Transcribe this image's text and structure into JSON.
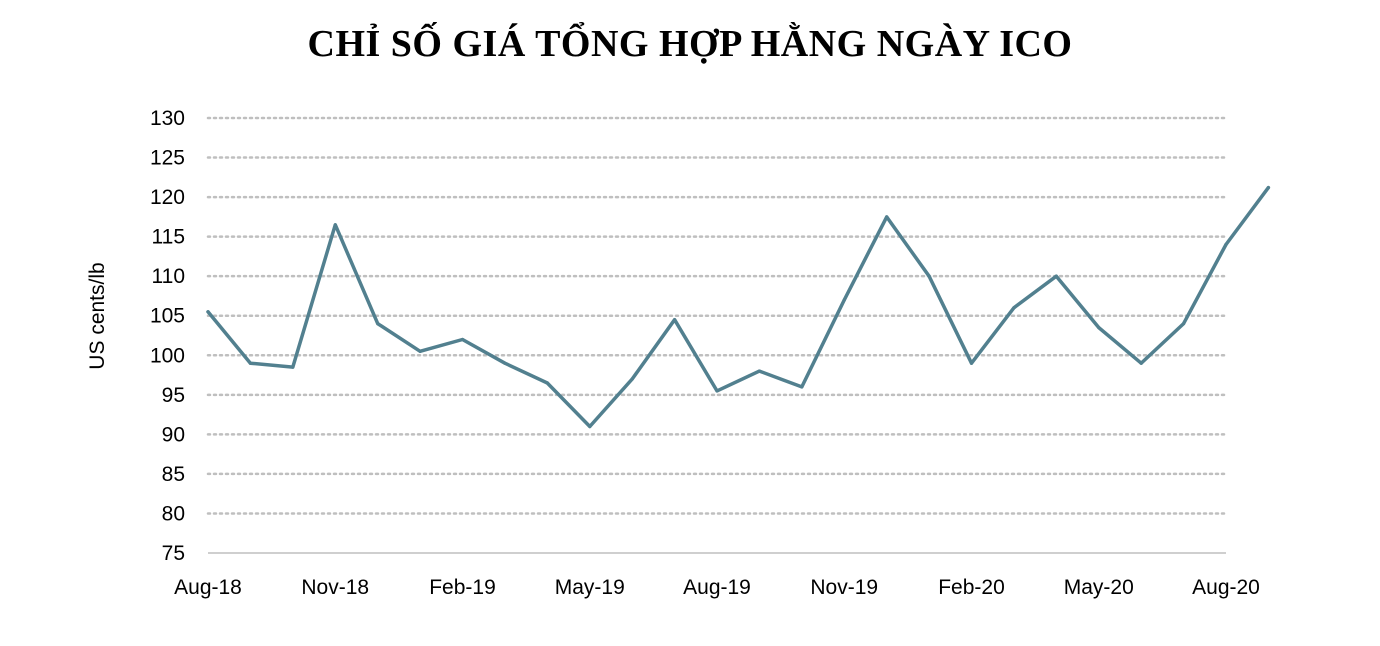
{
  "title": "CHỈ SỐ GIÁ TỔNG HỢP HẰNG NGÀY ICO",
  "colors": {
    "line": "#52808F",
    "grid": "#BFBFBF",
    "axis": "#BFBFBF",
    "text": "#000000"
  },
  "chart_data": {
    "type": "line",
    "title": "CHỈ SỐ GIÁ TỔNG HỢP HẰNG NGÀY ICO",
    "xlabel": "",
    "ylabel": "US cents/lb",
    "ylim": [
      75,
      130
    ],
    "yticks": [
      "130",
      "125",
      "120",
      "115",
      "110",
      "105",
      "100",
      "95",
      "90",
      "85",
      "80",
      "75"
    ],
    "xticks": [
      "Aug-18",
      "Nov-18",
      "Feb-19",
      "May-19",
      "Aug-19",
      "Nov-19",
      "Feb-20",
      "May-20",
      "Aug-20"
    ],
    "grid": true,
    "legend": "none",
    "series": [
      {
        "x": [
          "Aug-18",
          "Sep-18",
          "Oct-18",
          "Nov-18",
          "Dec-18",
          "Jan-19",
          "Feb-19",
          "Mar-19",
          "Apr-19",
          "May-19",
          "Jun-19",
          "Jul-19",
          "Aug-19",
          "Sep-19",
          "Oct-19",
          "Nov-19",
          "Dec-19",
          "Jan-20",
          "Feb-20",
          "Mar-20",
          "Apr-20",
          "May-20",
          "Jun-20",
          "Jul-20",
          "Aug-20",
          "Sep-20"
        ],
        "values": [
          105.5,
          99.0,
          98.5,
          116.5,
          104.0,
          100.5,
          102.0,
          99.0,
          96.5,
          91.0,
          97.0,
          104.5,
          95.5,
          98.0,
          96.0,
          107.0,
          117.5,
          110.0,
          99.0,
          106.0,
          110.0,
          103.5,
          99.0,
          104.0,
          114.0,
          121.2
        ]
      }
    ]
  }
}
